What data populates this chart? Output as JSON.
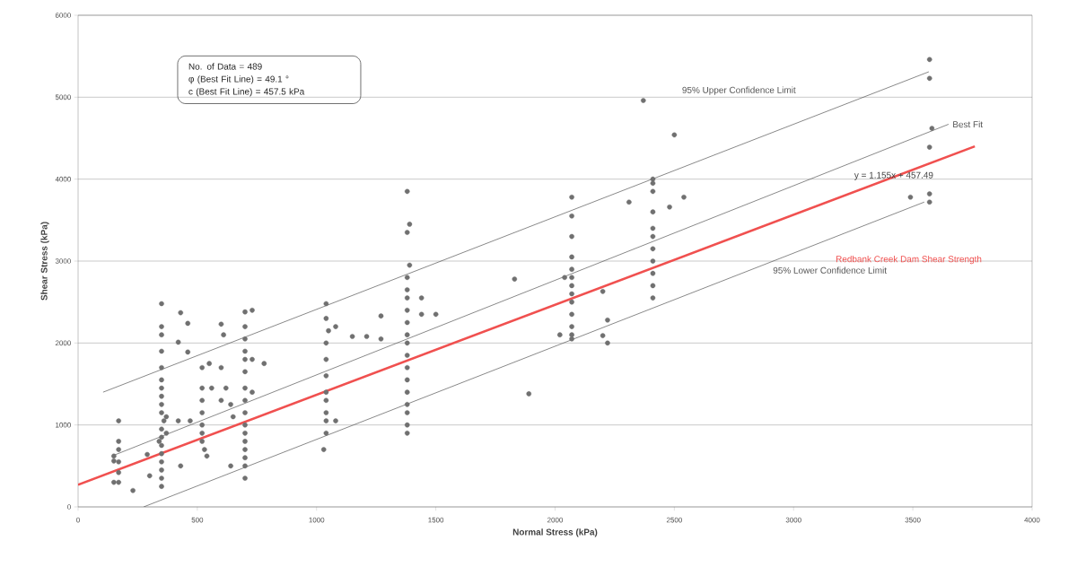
{
  "chart_data": {
    "type": "scatter",
    "xlabel": "Normal Stress (kPa)",
    "ylabel": "Shear Stress (kPa)",
    "xlim": [
      0,
      4000
    ],
    "ylim": [
      0,
      6000
    ],
    "xticks": [
      0,
      500,
      1000,
      1500,
      2000,
      2500,
      3000,
      3500,
      4000
    ],
    "yticks": [
      0,
      1000,
      2000,
      3000,
      4000,
      5000,
      6000
    ],
    "grid": "y",
    "legend": false,
    "annotations": [
      "No. of Data = 489",
      "φ (Best Fit Line) = 49.1 °",
      "c (Best Fit Line) = 457.5 kPa",
      "y = 1.155x + 457.49"
    ],
    "series": [
      {
        "color": "#707070",
        "marker": "circle",
        "x": [
          170,
          170,
          170,
          170,
          170,
          170,
          150,
          150,
          150,
          230,
          290,
          300,
          350,
          350,
          350,
          350,
          350,
          350,
          350,
          350,
          350,
          350,
          360,
          350,
          350,
          350,
          350,
          350,
          350,
          350,
          350,
          370,
          370,
          340,
          430,
          420,
          460,
          460,
          430,
          420,
          470,
          520,
          520,
          520,
          520,
          520,
          520,
          520,
          530,
          540,
          550,
          560,
          600,
          610,
          600,
          620,
          600,
          640,
          650,
          640,
          700,
          700,
          700,
          700,
          700,
          700,
          700,
          700,
          700,
          700,
          700,
          700,
          700,
          700,
          700,
          700,
          730,
          730,
          730,
          780,
          1040,
          1040,
          1050,
          1040,
          1040,
          1040,
          1040,
          1040,
          1040,
          1040,
          1040,
          1030,
          1080,
          1080,
          1150,
          1210,
          1270,
          1270,
          1380,
          1390,
          1380,
          1390,
          1380,
          1380,
          1380,
          1380,
          1380,
          1380,
          1380,
          1380,
          1380,
          1380,
          1380,
          1380,
          1380,
          1380,
          1380,
          1440,
          1440,
          1500,
          1830,
          1890,
          2070,
          2070,
          2070,
          2070,
          2070,
          2070,
          2070,
          2070,
          2070,
          2070,
          2070,
          2070,
          2070,
          2020,
          2040,
          2200,
          2220,
          2200,
          2220,
          2410,
          2410,
          2410,
          2410,
          2410,
          2410,
          2410,
          2410,
          2410,
          2410,
          2410,
          2370,
          2310,
          2500,
          2480,
          2540,
          3570,
          3570,
          3580,
          3570,
          3570,
          3570,
          3490
        ],
        "values": [
          1050,
          800,
          700,
          550,
          420,
          300,
          620,
          560,
          300,
          200,
          640,
          380,
          2480,
          2200,
          2100,
          1900,
          1700,
          1550,
          1450,
          1350,
          1250,
          1150,
          1050,
          950,
          850,
          750,
          650,
          550,
          450,
          350,
          250,
          1100,
          900,
          800,
          2370,
          2010,
          2240,
          1890,
          500,
          1050,
          1050,
          1700,
          1450,
          1300,
          1150,
          1000,
          900,
          800,
          700,
          620,
          1750,
          1450,
          2230,
          2100,
          1700,
          1450,
          1300,
          1250,
          1100,
          500,
          2380,
          2200,
          2050,
          1900,
          1800,
          1650,
          1450,
          1300,
          1150,
          1000,
          900,
          800,
          700,
          600,
          500,
          350,
          2400,
          1800,
          1400,
          1750,
          2480,
          2300,
          2150,
          2000,
          1800,
          1600,
          1400,
          1300,
          1150,
          1050,
          900,
          700,
          1050,
          2200,
          2080,
          2080,
          2050,
          2330,
          3850,
          3450,
          3350,
          2950,
          2800,
          2650,
          2550,
          2400,
          2250,
          2100,
          2000,
          1850,
          1700,
          1550,
          1400,
          1250,
          1150,
          1000,
          900,
          2550,
          2350,
          2350,
          2780,
          1380,
          3780,
          3550,
          3300,
          3050,
          2900,
          2800,
          2700,
          2600,
          2500,
          2350,
          2200,
          2100,
          2050,
          2100,
          2800,
          2630,
          2280,
          2090,
          2000,
          4000,
          3950,
          3850,
          3600,
          3400,
          3300,
          3150,
          3000,
          2850,
          2700,
          2550,
          4960,
          3720,
          4540,
          3660,
          3780,
          5460,
          5230,
          4620,
          4390,
          3820,
          3720,
          3780
        ]
      },
      {
        "type": "line",
        "name": "95% Upper Confidence Limit",
        "color": "#555555",
        "marker": "none",
        "line_style": "solid",
        "x": [
          105,
          3567
        ],
        "values": [
          1400,
          5310
        ]
      },
      {
        "type": "line",
        "name": "Best Fit",
        "color": "#555555",
        "marker": "none",
        "line_style": "solid",
        "x": [
          150,
          3650
        ],
        "values": [
          630,
          4670
        ]
      },
      {
        "type": "line",
        "name": "Redbank Creek Dam Shear Strength",
        "color": "#f0504f",
        "marker": "none",
        "line_style": "solid",
        "x": [
          0,
          3760
        ],
        "values": [
          270,
          4400
        ]
      },
      {
        "type": "line",
        "name": "95% Lower Confidence Limit",
        "color": "#555555",
        "marker": "none",
        "line_style": "solid",
        "x": [
          275,
          3548
        ],
        "values": [
          0,
          3720
        ]
      }
    ]
  }
}
